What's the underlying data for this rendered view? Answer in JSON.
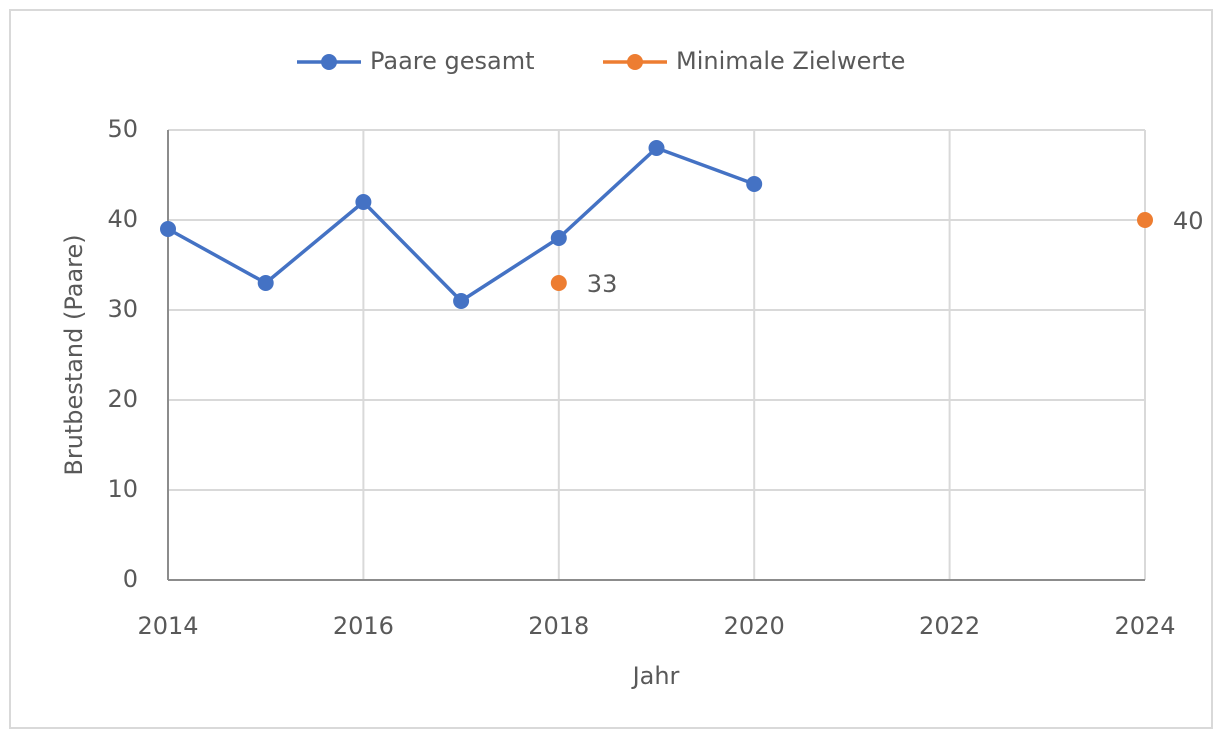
{
  "chart_data": {
    "type": "line",
    "x": [
      2014,
      2015,
      2016,
      2017,
      2018,
      2019,
      2020,
      2021,
      2022,
      2023,
      2024
    ],
    "series": [
      {
        "name": "Paare gesamt",
        "color": "#4472c4",
        "values": [
          39,
          33,
          42,
          31,
          38,
          48,
          44,
          null,
          null,
          null,
          null
        ]
      },
      {
        "name": "Minimale Zielwerte",
        "color": "#ed7d31",
        "values": [
          null,
          null,
          null,
          null,
          33,
          null,
          null,
          null,
          null,
          null,
          40
        ],
        "data_labels": true
      }
    ],
    "xlabel": "Jahr",
    "ylabel": "Brutbestand (Paare)",
    "xlim": [
      2014,
      2024
    ],
    "xticks": [
      2014,
      2016,
      2018,
      2020,
      2022,
      2024
    ],
    "ylim": [
      0,
      50
    ],
    "yticks": [
      0,
      10,
      20,
      30,
      40,
      50
    ],
    "grid": true,
    "legend": "top"
  }
}
